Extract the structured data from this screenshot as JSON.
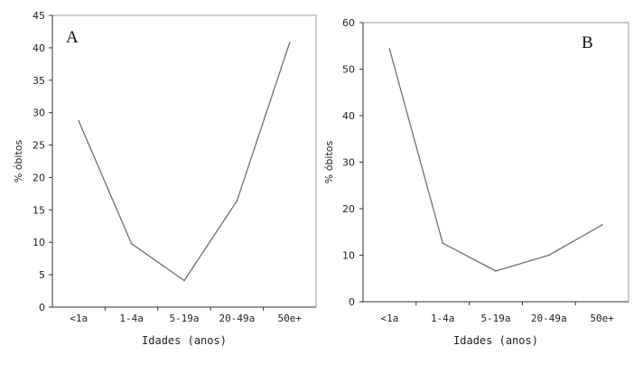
{
  "chart_data": [
    {
      "type": "line",
      "panel_label": "A",
      "categories": [
        "<1a",
        "1-4a",
        "5-19a",
        "20-49a",
        "50e+"
      ],
      "values": [
        28.7,
        9.8,
        4.1,
        16.4,
        40.8
      ],
      "xlabel": "Idades (anos)",
      "ylabel": "% óbitos",
      "ylim": [
        0,
        45
      ],
      "yticks": [
        0,
        5,
        10,
        15,
        20,
        25,
        30,
        35,
        40,
        45
      ],
      "grid": false,
      "line_color": "#6e6e7a"
    },
    {
      "type": "line",
      "panel_label": "B",
      "categories": [
        "<1a",
        "1-4a",
        "5-19a",
        "20-49a",
        "50e+"
      ],
      "values": [
        54.3,
        12.6,
        6.6,
        10.0,
        16.5
      ],
      "xlabel": "Idades (anos)",
      "ylabel": "% óbitos",
      "ylim": [
        0,
        60
      ],
      "yticks": [
        0,
        10,
        20,
        30,
        40,
        50,
        60
      ],
      "grid": false,
      "line_color": "#6e6e7a"
    }
  ]
}
